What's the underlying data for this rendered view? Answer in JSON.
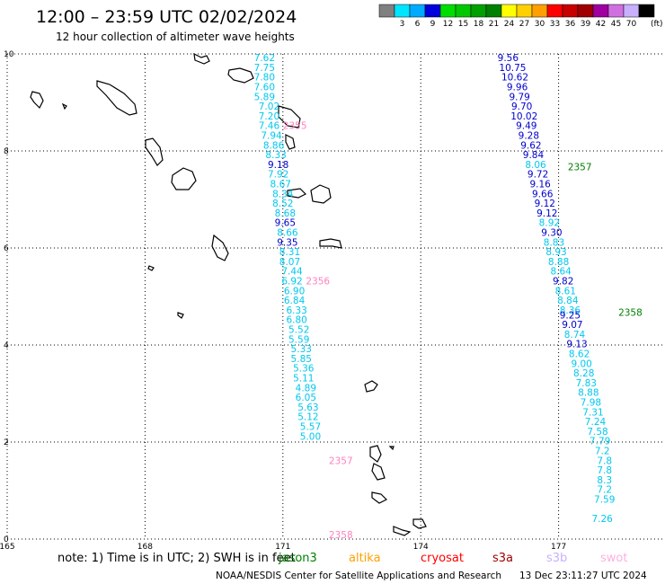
{
  "header": {
    "title": "12:00 – 23:59 UTC 02/02/2024",
    "subtitle": "12 hour collection of altimeter wave heights"
  },
  "legend": {
    "entries": [
      {
        "label": "",
        "color": "#808080"
      },
      {
        "label": "3",
        "color": "#00e5ff"
      },
      {
        "label": "6",
        "color": "#00aaff"
      },
      {
        "label": "9",
        "color": "#0000dd"
      },
      {
        "label": "12",
        "color": "#00dd00"
      },
      {
        "label": "15",
        "color": "#00c800"
      },
      {
        "label": "18",
        "color": "#00a000"
      },
      {
        "label": "21",
        "color": "#008000"
      },
      {
        "label": "24",
        "color": "#ffff00"
      },
      {
        "label": "27",
        "color": "#ffd000"
      },
      {
        "label": "30",
        "color": "#ffa000"
      },
      {
        "label": "33",
        "color": "#ff0000"
      },
      {
        "label": "36",
        "color": "#c80000"
      },
      {
        "label": "39",
        "color": "#a00000"
      },
      {
        "label": "42",
        "color": "#a000a0"
      },
      {
        "label": "45",
        "color": "#d070e0"
      },
      {
        "label": "70",
        "color": "#c8b0ff"
      },
      {
        "label": "",
        "color": "#000000"
      }
    ],
    "unit": "(ft)"
  },
  "chart_data": {
    "type": "scatter",
    "xlim": [
      165,
      180
    ],
    "ylim": [
      0,
      10
    ],
    "x_ticks": [
      {
        "value": 165,
        "label": "165"
      },
      {
        "value": 168,
        "label": "168"
      },
      {
        "value": 171,
        "label": "171"
      },
      {
        "value": 174,
        "label": "174"
      },
      {
        "value": 177,
        "label": "177"
      }
    ],
    "y_ticks": [
      {
        "value": 0,
        "label": "0"
      },
      {
        "value": 2,
        "label": "2"
      },
      {
        "value": 4,
        "label": "4"
      },
      {
        "value": 6,
        "label": "6"
      },
      {
        "value": 8,
        "label": "8"
      },
      {
        "value": 10,
        "label": "10"
      }
    ],
    "grid": true,
    "colors": {
      "light": "#00c8ee",
      "dark": "#0000cc",
      "time": "#ff80c0",
      "time_dark": "#008000"
    },
    "tracks": [
      {
        "points": [
          [
            170.6,
            9.85,
            "7.62",
            "light"
          ],
          [
            170.6,
            9.65,
            "7.75",
            "light"
          ],
          [
            170.6,
            9.45,
            "7.80",
            "light"
          ],
          [
            170.6,
            9.25,
            "7.60",
            "light"
          ],
          [
            170.6,
            9.05,
            "5.89",
            "light"
          ],
          [
            170.7,
            8.85,
            "7.02",
            "light"
          ],
          [
            170.7,
            8.65,
            "7.20",
            "light"
          ],
          [
            170.7,
            8.45,
            "7.46",
            "light"
          ],
          [
            170.75,
            8.25,
            "7.94",
            "light"
          ],
          [
            170.8,
            8.05,
            "8.86",
            "light"
          ],
          [
            170.85,
            7.85,
            "8.33",
            "light"
          ],
          [
            170.9,
            7.65,
            "9.18",
            "dark"
          ],
          [
            170.9,
            7.45,
            "7.92",
            "light"
          ],
          [
            170.95,
            7.25,
            "8.67",
            "light"
          ],
          [
            171.0,
            7.05,
            "8.34",
            "light"
          ],
          [
            171.0,
            6.85,
            "8.52",
            "light"
          ],
          [
            171.05,
            6.65,
            "8.68",
            "light"
          ],
          [
            171.05,
            6.45,
            "9.65",
            "dark"
          ],
          [
            171.1,
            6.25,
            "8.66",
            "light"
          ],
          [
            171.1,
            6.05,
            "9.35",
            "dark"
          ],
          [
            171.15,
            5.85,
            "8.31",
            "light"
          ],
          [
            171.15,
            5.65,
            "8.07",
            "light"
          ],
          [
            171.2,
            5.45,
            "7.44",
            "light"
          ],
          [
            171.2,
            5.25,
            "6.92",
            "light"
          ],
          [
            171.25,
            5.05,
            "6.90",
            "light"
          ],
          [
            171.25,
            4.85,
            "6.84",
            "light"
          ],
          [
            171.3,
            4.65,
            "6.33",
            "light"
          ],
          [
            171.3,
            4.45,
            "6.80",
            "light"
          ],
          [
            171.35,
            4.25,
            "5.52",
            "light"
          ],
          [
            171.35,
            4.05,
            "5.59",
            "light"
          ],
          [
            171.4,
            3.85,
            "5.33",
            "light"
          ],
          [
            171.4,
            3.65,
            "5.85",
            "light"
          ],
          [
            171.45,
            3.45,
            "5.36",
            "light"
          ],
          [
            171.45,
            3.25,
            "5.11",
            "light"
          ],
          [
            171.5,
            3.05,
            "4.89",
            "light"
          ],
          [
            171.5,
            2.85,
            "6.05",
            "light"
          ],
          [
            171.55,
            2.65,
            "5.63",
            "light"
          ],
          [
            171.55,
            2.45,
            "5.12",
            "light"
          ],
          [
            171.6,
            2.25,
            "5.57",
            "light"
          ],
          [
            171.6,
            2.05,
            "5.00",
            "light"
          ]
        ]
      },
      {
        "points": [
          [
            175.9,
            9.85,
            "9.56",
            "dark"
          ],
          [
            176.0,
            9.65,
            "10.75",
            "dark"
          ],
          [
            176.05,
            9.45,
            "10.62",
            "dark"
          ],
          [
            176.1,
            9.25,
            "9.96",
            "dark"
          ],
          [
            176.15,
            9.05,
            "9.79",
            "dark"
          ],
          [
            176.2,
            8.85,
            "9.70",
            "dark"
          ],
          [
            176.25,
            8.65,
            "10.02",
            "dark"
          ],
          [
            176.3,
            8.45,
            "9.49",
            "dark"
          ],
          [
            176.35,
            8.25,
            "9.28",
            "dark"
          ],
          [
            176.4,
            8.05,
            "9.62",
            "dark"
          ],
          [
            176.45,
            7.85,
            "9.84",
            "dark"
          ],
          [
            176.5,
            7.65,
            "8.06",
            "light"
          ],
          [
            176.55,
            7.45,
            "9.72",
            "dark"
          ],
          [
            176.6,
            7.25,
            "9.16",
            "dark"
          ],
          [
            176.65,
            7.05,
            "9.66",
            "dark"
          ],
          [
            176.7,
            6.85,
            "9.12",
            "dark"
          ],
          [
            176.75,
            6.65,
            "9.12",
            "dark"
          ],
          [
            176.8,
            6.45,
            "8.92",
            "light"
          ],
          [
            176.85,
            6.25,
            "9.30",
            "dark"
          ],
          [
            176.9,
            6.05,
            "8.83",
            "light"
          ],
          [
            176.95,
            5.85,
            "8.93",
            "light"
          ],
          [
            177.0,
            5.65,
            "8.88",
            "light"
          ],
          [
            177.05,
            5.45,
            "8.64",
            "light"
          ],
          [
            177.1,
            5.25,
            "9.82",
            "dark"
          ],
          [
            177.15,
            5.05,
            "8.61",
            "light"
          ],
          [
            177.2,
            4.85,
            "8.84",
            "light"
          ],
          [
            177.25,
            4.65,
            "8.36",
            "light"
          ],
          [
            177.25,
            4.55,
            "9.25",
            "dark"
          ],
          [
            177.3,
            4.35,
            "9.07",
            "dark"
          ],
          [
            177.35,
            4.15,
            "8.74",
            "light"
          ],
          [
            177.4,
            3.95,
            "9.13",
            "dark"
          ],
          [
            177.45,
            3.75,
            "8.62",
            "light"
          ],
          [
            177.5,
            3.55,
            "9.00",
            "light"
          ],
          [
            177.55,
            3.35,
            "8.28",
            "light"
          ],
          [
            177.6,
            3.15,
            "7.83",
            "light"
          ],
          [
            177.65,
            2.95,
            "8.88",
            "light"
          ],
          [
            177.7,
            2.75,
            "7.98",
            "light"
          ],
          [
            177.75,
            2.55,
            "7.31",
            "light"
          ],
          [
            177.8,
            2.35,
            "7.24",
            "light"
          ],
          [
            177.85,
            2.15,
            "7.58",
            "light"
          ],
          [
            177.9,
            1.95,
            "7.79",
            "light"
          ],
          [
            177.95,
            1.75,
            "7.2",
            "light"
          ],
          [
            178.0,
            1.55,
            "7.8",
            "light"
          ],
          [
            178.0,
            1.35,
            "7.8",
            "light"
          ],
          [
            178.0,
            1.15,
            "8.3",
            "light"
          ],
          [
            178.0,
            0.95,
            "7.2",
            "light"
          ],
          [
            178.0,
            0.75,
            "7.59",
            "light"
          ],
          [
            177.95,
            0.35,
            "7.26",
            "light"
          ]
        ]
      }
    ],
    "time_labels": [
      {
        "x": 171.0,
        "y": 8.45,
        "text": "2355",
        "color": "time"
      },
      {
        "x": 171.5,
        "y": 5.25,
        "text": "2356",
        "color": "time"
      },
      {
        "x": 172.0,
        "y": 1.55,
        "text": "2357",
        "color": "time"
      },
      {
        "x": 172.0,
        "y": 0.02,
        "text": "2358",
        "color": "time"
      },
      {
        "x": 177.2,
        "y": 7.6,
        "text": "2357",
        "color": "time_dark"
      },
      {
        "x": 178.3,
        "y": 4.6,
        "text": "2358",
        "color": "time_dark"
      }
    ]
  },
  "footer": {
    "note": "note: 1) Time is in UTC; 2) SWH is in feet",
    "satellites": [
      {
        "name": "jason3",
        "color": "#008000"
      },
      {
        "name": "altika",
        "color": "#ffa000"
      },
      {
        "name": "cryosat",
        "color": "#ff0000"
      },
      {
        "name": "s3a",
        "color": "#a00000"
      },
      {
        "name": "s3b",
        "color": "#c8b0ff"
      },
      {
        "name": "swot",
        "color": "#ffb0e0"
      }
    ],
    "credit": "NOAA/NESDIS Center for Satellite Applications and Research",
    "timestamp": "13 Dec 23:11:27 UTC 2024"
  }
}
